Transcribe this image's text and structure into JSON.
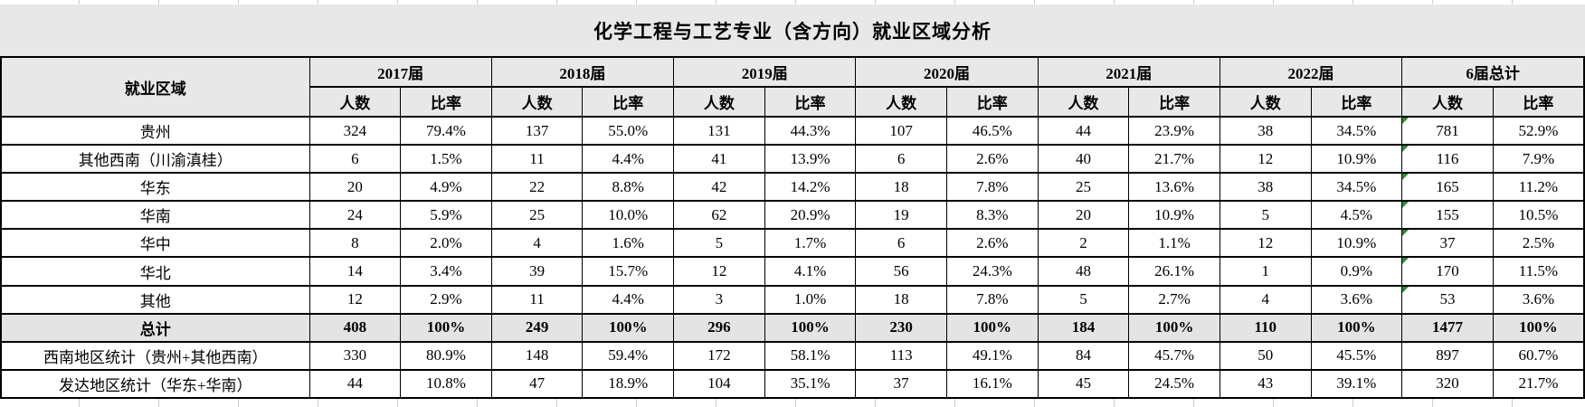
{
  "title": "化学工程与工艺专业（含方向）就业区域分析",
  "colors": {
    "header_bg": "#e8e8e8",
    "total_row_bg": "#e4e4e4",
    "flag_green": "#2f8a2f",
    "gridline": "#ccccd9",
    "border": "#000000"
  },
  "table": {
    "region_header": "就业区域",
    "groups": [
      {
        "label": "2017届"
      },
      {
        "label": "2018届"
      },
      {
        "label": "2019届"
      },
      {
        "label": "2020届"
      },
      {
        "label": "2021届"
      },
      {
        "label": "2022届"
      },
      {
        "label": "6届总计"
      }
    ],
    "subheaders": {
      "count": "人数",
      "ratio": "比率"
    },
    "rows": [
      {
        "region": "贵州",
        "emphasis": false,
        "flagged": true,
        "values": [
          "324",
          "79.4%",
          "137",
          "55.0%",
          "131",
          "44.3%",
          "107",
          "46.5%",
          "44",
          "23.9%",
          "38",
          "34.5%",
          "781",
          "52.9%"
        ]
      },
      {
        "region": "其他西南（川渝滇桂）",
        "emphasis": false,
        "flagged": true,
        "values": [
          "6",
          "1.5%",
          "11",
          "4.4%",
          "41",
          "13.9%",
          "6",
          "2.6%",
          "40",
          "21.7%",
          "12",
          "10.9%",
          "116",
          "7.9%"
        ]
      },
      {
        "region": "华东",
        "emphasis": false,
        "flagged": true,
        "values": [
          "20",
          "4.9%",
          "22",
          "8.8%",
          "42",
          "14.2%",
          "18",
          "7.8%",
          "25",
          "13.6%",
          "38",
          "34.5%",
          "165",
          "11.2%"
        ]
      },
      {
        "region": "华南",
        "emphasis": false,
        "flagged": true,
        "values": [
          "24",
          "5.9%",
          "25",
          "10.0%",
          "62",
          "20.9%",
          "19",
          "8.3%",
          "20",
          "10.9%",
          "5",
          "4.5%",
          "155",
          "10.5%"
        ]
      },
      {
        "region": "华中",
        "emphasis": false,
        "flagged": true,
        "values": [
          "8",
          "2.0%",
          "4",
          "1.6%",
          "5",
          "1.7%",
          "6",
          "2.6%",
          "2",
          "1.1%",
          "12",
          "10.9%",
          "37",
          "2.5%"
        ]
      },
      {
        "region": "华北",
        "emphasis": false,
        "flagged": true,
        "values": [
          "14",
          "3.4%",
          "39",
          "15.7%",
          "12",
          "4.1%",
          "56",
          "24.3%",
          "48",
          "26.1%",
          "1",
          "0.9%",
          "170",
          "11.5%"
        ]
      },
      {
        "region": "其他",
        "emphasis": false,
        "flagged": true,
        "values": [
          "12",
          "2.9%",
          "11",
          "4.4%",
          "3",
          "1.0%",
          "18",
          "7.8%",
          "5",
          "2.7%",
          "4",
          "3.6%",
          "53",
          "3.6%"
        ]
      },
      {
        "region": "总计",
        "emphasis": true,
        "flagged": false,
        "values": [
          "408",
          "100%",
          "249",
          "100%",
          "296",
          "100%",
          "230",
          "100%",
          "184",
          "100%",
          "110",
          "100%",
          "1477",
          "100%"
        ]
      },
      {
        "region": "西南地区统计（贵州+其他西南）",
        "emphasis": false,
        "flagged": false,
        "values": [
          "330",
          "80.9%",
          "148",
          "59.4%",
          "172",
          "58.1%",
          "113",
          "49.1%",
          "84",
          "45.7%",
          "50",
          "45.5%",
          "897",
          "60.7%"
        ]
      },
      {
        "region": "发达地区统计（华东+华南）",
        "emphasis": false,
        "flagged": false,
        "values": [
          "44",
          "10.8%",
          "47",
          "18.9%",
          "104",
          "35.1%",
          "37",
          "16.1%",
          "45",
          "24.5%",
          "43",
          "39.1%",
          "320",
          "21.7%"
        ]
      }
    ]
  }
}
